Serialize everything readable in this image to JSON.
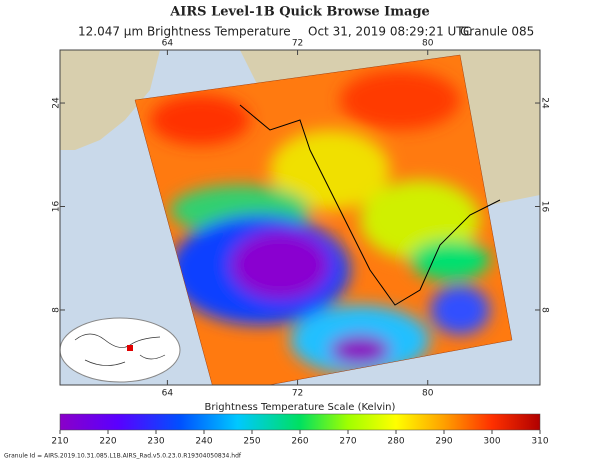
{
  "header": {
    "title": "AIRS Level-1B Quick Browse Image",
    "product": "12.047 μm Brightness Temperature",
    "time": "Oct 31, 2019 08:29:21 UTC",
    "granule": "Granule 085"
  },
  "map": {
    "lon_range": [
      57.4,
      86.9
    ],
    "lat_range": [
      2.2,
      28.1
    ],
    "lon_ticks": [
      64,
      72,
      80
    ],
    "lat_ticks": [
      24,
      16,
      8
    ]
  },
  "colorbar": {
    "title": "Brightness Temperature Scale (Kelvin)",
    "range": [
      210,
      310
    ],
    "ticks": [
      210,
      220,
      230,
      240,
      250,
      260,
      270,
      280,
      290,
      300,
      310
    ]
  },
  "footer": {
    "granule_id": "Granule Id = AIRS.2019.10.31.085.L1B.AIRS_Rad.v5.0.23.0.R19304050834.hdf"
  }
}
